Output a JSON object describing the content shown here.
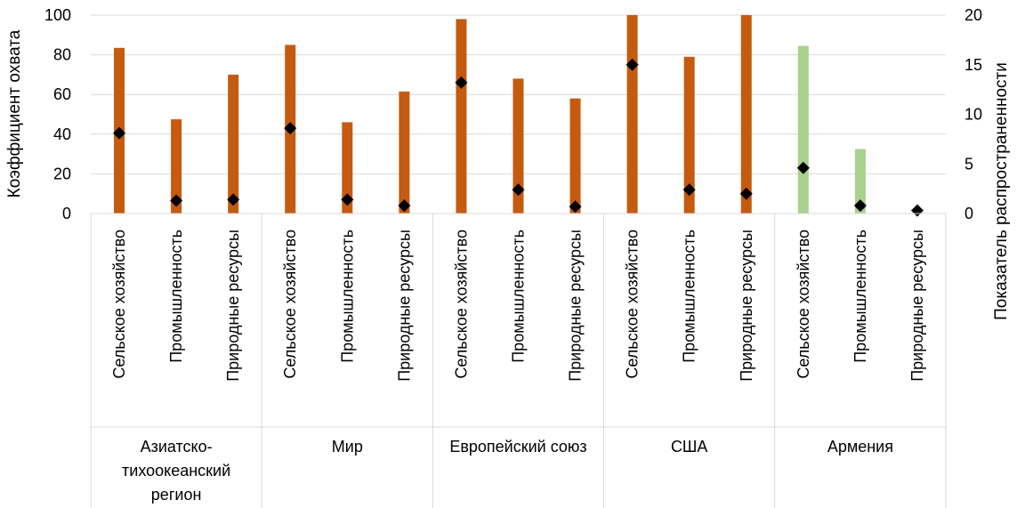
{
  "chart_data": {
    "type": "bar",
    "ylabel_left": "Коэффициент охвата",
    "ylabel_right": "Показатель распространенности",
    "ylim_left": [
      0,
      100
    ],
    "ylim_right": [
      0,
      20
    ],
    "yticks_left": [
      0,
      20,
      40,
      60,
      80,
      100
    ],
    "yticks_right": [
      0,
      5,
      10,
      15,
      20
    ],
    "grid": true,
    "legend": "none",
    "groups": [
      {
        "name": "Азиатско-тихоокеанский регион",
        "name_lines": [
          "Азиатско-",
          "тихоокеанский",
          "регион"
        ],
        "categories": [
          "Сельское хозяйство",
          "Промышленность",
          "Природные ресурсы"
        ],
        "bars": [
          83.5,
          47.5,
          70
        ],
        "markers": [
          8.1,
          1.3,
          1.4
        ],
        "color": "#C55A11"
      },
      {
        "name": "Мир",
        "name_lines": [
          "Мир"
        ],
        "categories": [
          "Сельское хозяйство",
          "Промышленность",
          "Природные ресурсы"
        ],
        "bars": [
          85,
          46,
          61.5
        ],
        "markers": [
          8.6,
          1.4,
          0.8
        ],
        "color": "#C55A11"
      },
      {
        "name": "Европейский союз",
        "name_lines": [
          "Европейский союз"
        ],
        "categories": [
          "Сельское хозяйство",
          "Промышленность",
          "Природные ресурсы"
        ],
        "bars": [
          98,
          68,
          58
        ],
        "markers": [
          13.2,
          2.4,
          0.7
        ],
        "color": "#C55A11"
      },
      {
        "name": "США",
        "name_lines": [
          "США"
        ],
        "categories": [
          "Сельское хозяйство",
          "Промышленность",
          "Природные ресурсы"
        ],
        "bars": [
          100,
          79,
          100
        ],
        "markers": [
          15,
          2.4,
          2.0
        ],
        "color": "#C55A11"
      },
      {
        "name": "Армения",
        "name_lines": [
          "Армения"
        ],
        "categories": [
          "Сельское хозяйство",
          "Промышленность",
          "Природные ресурсы"
        ],
        "bars": [
          84.5,
          32.5,
          0
        ],
        "markers": [
          4.6,
          0.8,
          0.3
        ],
        "color": "#A9D18E"
      }
    ],
    "series": [
      {
        "type": "bar",
        "axis": "left"
      },
      {
        "type": "marker",
        "axis": "right",
        "color": "#000000"
      }
    ]
  }
}
